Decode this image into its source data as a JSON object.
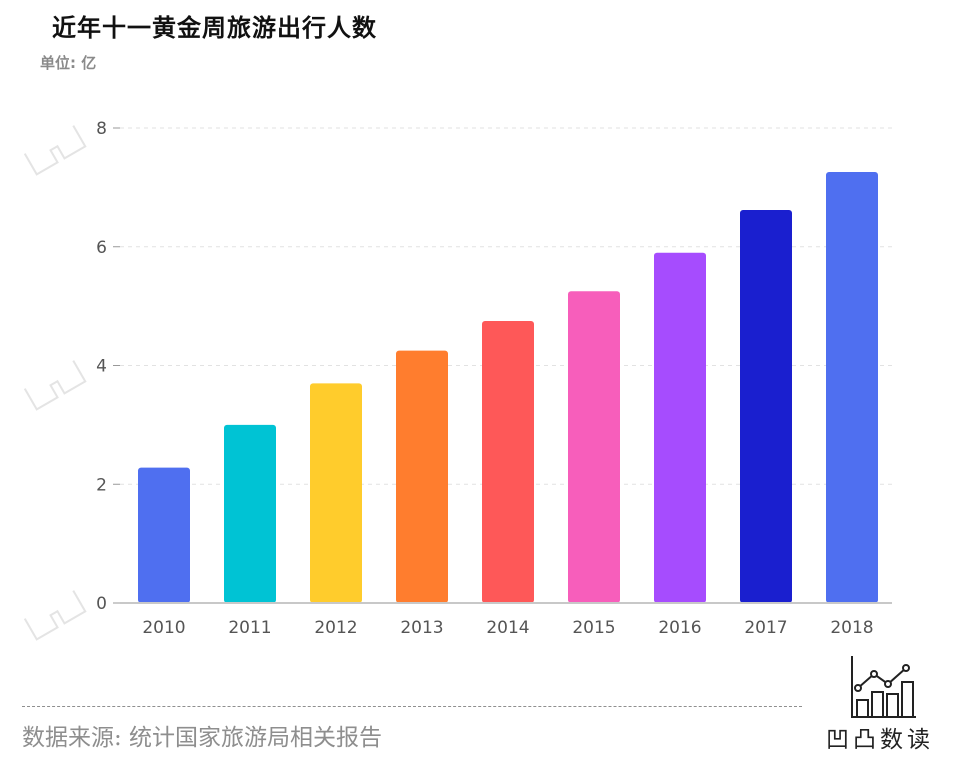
{
  "header": {
    "title": "近年十一黄金周旅游出行人数",
    "unit": "单位: 亿"
  },
  "footer": {
    "source": "数据来源: 统计国家旅游局相关报告",
    "logo_text": "凹凸数读",
    "logo_icon": "chart-logo-icon"
  },
  "chart_data": {
    "type": "bar",
    "title": "近年十一黄金周旅游出行人数",
    "xlabel": "",
    "ylabel": "单位: 亿",
    "categories": [
      "2010",
      "2011",
      "2012",
      "2013",
      "2014",
      "2015",
      "2016",
      "2017",
      "2018"
    ],
    "values": [
      2.28,
      3.0,
      3.7,
      4.25,
      4.75,
      5.25,
      5.9,
      6.62,
      7.26
    ],
    "colors": [
      "#4f6ff0",
      "#00c3d4",
      "#ffcc2c",
      "#ff7d2e",
      "#fe5858",
      "#f75ebb",
      "#a64cfe",
      "#1a1fcf",
      "#4f6ff0"
    ],
    "ylim": [
      0,
      8
    ],
    "yticks": [
      0,
      2,
      4,
      6,
      8
    ],
    "grid": true,
    "legend": "none"
  }
}
